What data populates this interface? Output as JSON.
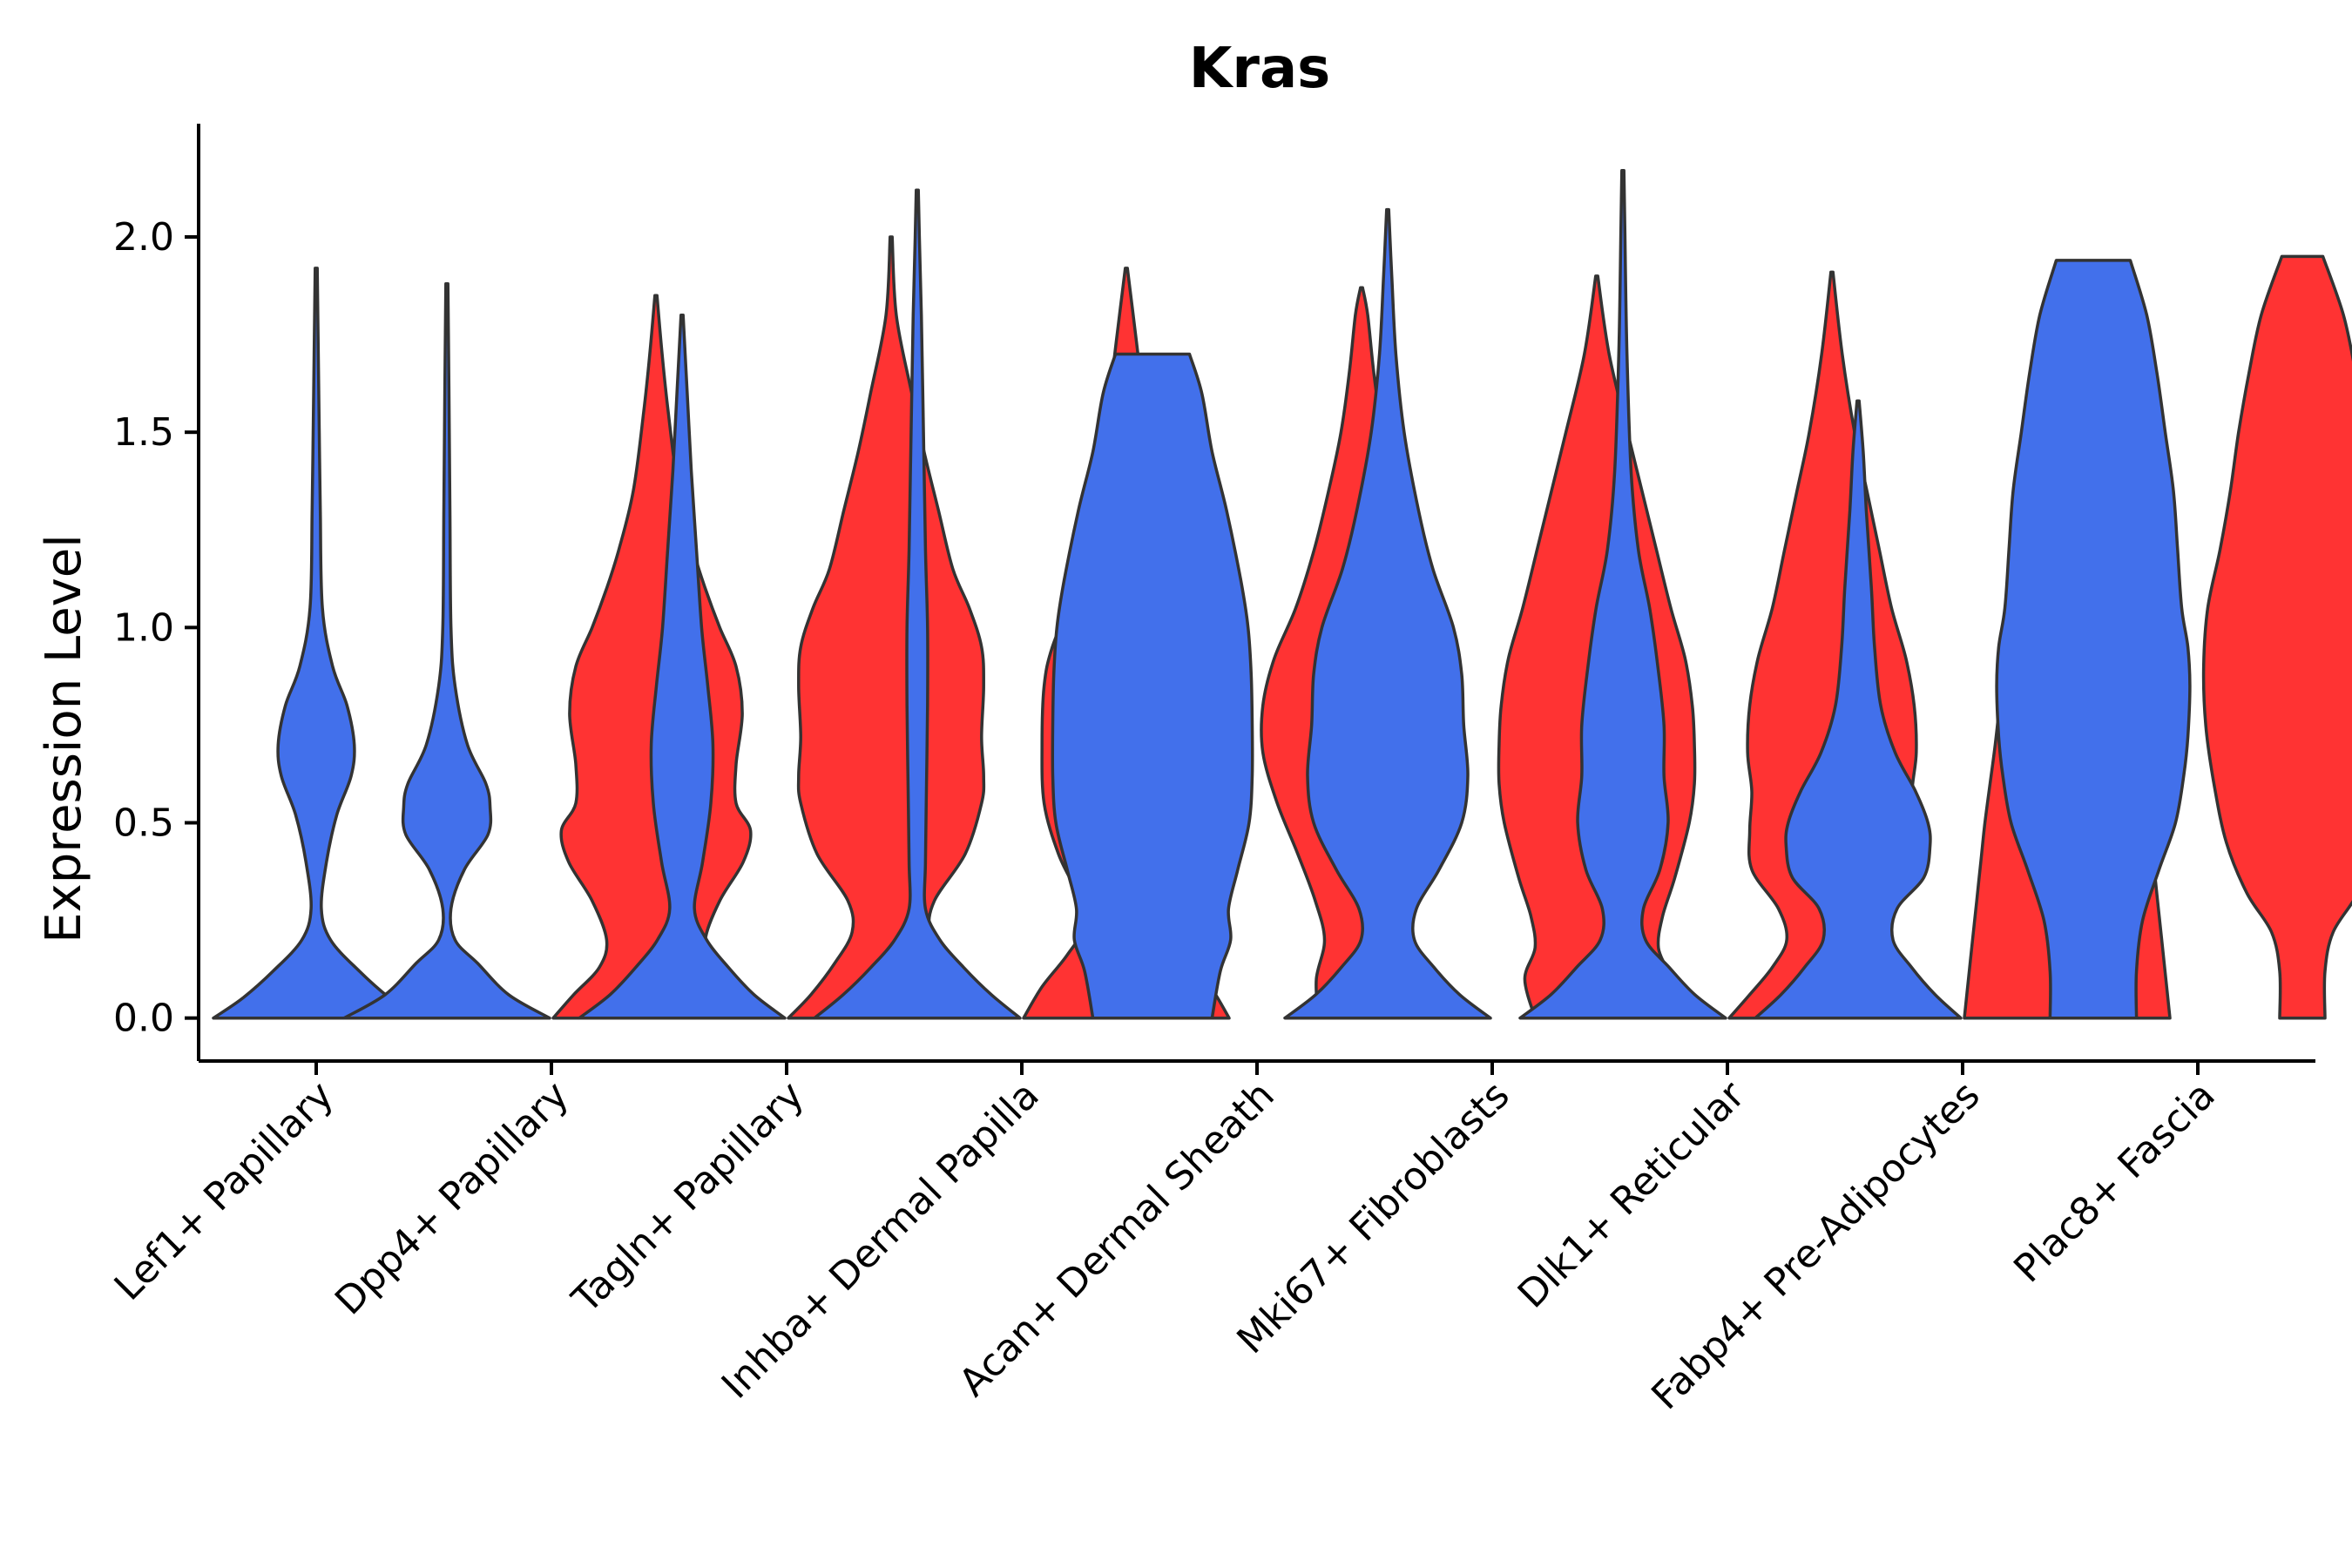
{
  "chart_data": {
    "type": "violin",
    "title": "Kras",
    "ylabel": "Expression Level",
    "xlabel": "",
    "ylim": [
      -0.11,
      2.29
    ],
    "yticks": [
      0.0,
      0.5,
      1.0,
      1.5,
      2.0
    ],
    "ytick_labels": [
      "0.0",
      "0.5",
      "1.0",
      "1.5",
      "2.0"
    ],
    "grid": false,
    "legend": "none",
    "colors": {
      "group_a": "#4270EB",
      "group_b": "#FF3333",
      "outline": "#333333"
    },
    "categories": [
      "Lef1+ Papillary",
      "Dpp4+ Papillary",
      "Tagln+ Papillary",
      "Inhba+ Dermal Papilla",
      "Acan+ Dermal Sheath",
      "Mki67+ Fibroblasts",
      "Dlk1+ Reticular",
      "Fabp4+ Pre-Adipocytes",
      "Plac8+ Fascia"
    ],
    "violins": [
      {
        "category": "Lef1+ Papillary",
        "group": "group_a",
        "max": 1.92,
        "profile": [
          [
            0,
            1.0
          ],
          [
            0.05,
            0.72
          ],
          [
            0.12,
            0.42
          ],
          [
            0.2,
            0.14
          ],
          [
            0.28,
            0.05
          ],
          [
            0.4,
            0.1
          ],
          [
            0.52,
            0.2
          ],
          [
            0.62,
            0.34
          ],
          [
            0.7,
            0.37
          ],
          [
            0.8,
            0.3
          ],
          [
            0.9,
            0.16
          ],
          [
            1.05,
            0.06
          ],
          [
            1.3,
            0.04
          ],
          [
            1.5,
            0.03
          ],
          [
            1.7,
            0.02
          ],
          [
            1.92,
            0.01
          ]
        ]
      },
      {
        "category": "Dpp4+ Papillary",
        "group": "group_a",
        "max": 1.88,
        "profile": [
          [
            0,
            1.0
          ],
          [
            0.06,
            0.6
          ],
          [
            0.14,
            0.3
          ],
          [
            0.2,
            0.08
          ],
          [
            0.28,
            0.04
          ],
          [
            0.38,
            0.17
          ],
          [
            0.47,
            0.4
          ],
          [
            0.54,
            0.42
          ],
          [
            0.6,
            0.38
          ],
          [
            0.7,
            0.2
          ],
          [
            0.85,
            0.08
          ],
          [
            1.0,
            0.04
          ],
          [
            1.3,
            0.03
          ],
          [
            1.6,
            0.02
          ],
          [
            1.88,
            0.01
          ]
        ]
      },
      {
        "category": "Dpp4+ Papillary",
        "group": "group_b",
        "max": 1.85,
        "profile": [
          [
            0,
            1.0
          ],
          [
            0.06,
            0.8
          ],
          [
            0.13,
            0.55
          ],
          [
            0.2,
            0.48
          ],
          [
            0.3,
            0.62
          ],
          [
            0.4,
            0.85
          ],
          [
            0.48,
            0.92
          ],
          [
            0.55,
            0.78
          ],
          [
            0.65,
            0.78
          ],
          [
            0.78,
            0.84
          ],
          [
            0.9,
            0.78
          ],
          [
            1.0,
            0.62
          ],
          [
            1.1,
            0.48
          ],
          [
            1.2,
            0.36
          ],
          [
            1.35,
            0.22
          ],
          [
            1.55,
            0.12
          ],
          [
            1.7,
            0.06
          ],
          [
            1.85,
            0.01
          ]
        ]
      },
      {
        "category": "Tagln+ Papillary",
        "group": "group_a",
        "max": 1.8,
        "profile": [
          [
            0,
            1.0
          ],
          [
            0.06,
            0.7
          ],
          [
            0.13,
            0.45
          ],
          [
            0.2,
            0.24
          ],
          [
            0.28,
            0.12
          ],
          [
            0.4,
            0.2
          ],
          [
            0.55,
            0.28
          ],
          [
            0.7,
            0.3
          ],
          [
            0.85,
            0.25
          ],
          [
            1.0,
            0.19
          ],
          [
            1.2,
            0.14
          ],
          [
            1.4,
            0.09
          ],
          [
            1.6,
            0.05
          ],
          [
            1.8,
            0.01
          ]
        ]
      },
      {
        "category": "Tagln+ Papillary",
        "group": "group_b",
        "max": 2.0,
        "profile": [
          [
            0,
            1.0
          ],
          [
            0.06,
            0.78
          ],
          [
            0.14,
            0.55
          ],
          [
            0.22,
            0.38
          ],
          [
            0.3,
            0.42
          ],
          [
            0.42,
            0.72
          ],
          [
            0.55,
            0.88
          ],
          [
            0.62,
            0.9
          ],
          [
            0.72,
            0.88
          ],
          [
            0.85,
            0.9
          ],
          [
            0.95,
            0.88
          ],
          [
            1.05,
            0.76
          ],
          [
            1.15,
            0.6
          ],
          [
            1.3,
            0.46
          ],
          [
            1.45,
            0.32
          ],
          [
            1.6,
            0.2
          ],
          [
            1.8,
            0.05
          ],
          [
            2.0,
            0.01
          ]
        ]
      },
      {
        "category": "Inhba+ Dermal Papilla",
        "group": "group_a",
        "max": 2.12,
        "profile": [
          [
            0,
            1.0
          ],
          [
            0.06,
            0.72
          ],
          [
            0.13,
            0.45
          ],
          [
            0.2,
            0.22
          ],
          [
            0.28,
            0.08
          ],
          [
            0.4,
            0.08
          ],
          [
            0.6,
            0.09
          ],
          [
            0.8,
            0.1
          ],
          [
            1.0,
            0.1
          ],
          [
            1.2,
            0.08
          ],
          [
            1.5,
            0.06
          ],
          [
            1.8,
            0.04
          ],
          [
            2.0,
            0.02
          ],
          [
            2.12,
            0.01
          ]
        ]
      },
      {
        "category": "Inhba+ Dermal Papilla",
        "group": "group_b",
        "max": 1.92,
        "profile": [
          [
            0,
            1.0
          ],
          [
            0.08,
            0.82
          ],
          [
            0.16,
            0.58
          ],
          [
            0.24,
            0.4
          ],
          [
            0.32,
            0.48
          ],
          [
            0.42,
            0.66
          ],
          [
            0.55,
            0.8
          ],
          [
            0.7,
            0.82
          ],
          [
            0.85,
            0.8
          ],
          [
            0.95,
            0.72
          ],
          [
            1.1,
            0.5
          ],
          [
            1.25,
            0.36
          ],
          [
            1.45,
            0.25
          ],
          [
            1.6,
            0.16
          ],
          [
            1.75,
            0.09
          ],
          [
            1.92,
            0.01
          ]
        ]
      },
      {
        "category": "Acan+ Dermal Sheath",
        "group": "group_a",
        "max": 1.7,
        "profile": [
          [
            0,
            0.58
          ],
          [
            0.12,
            0.66
          ],
          [
            0.2,
            0.76
          ],
          [
            0.28,
            0.74
          ],
          [
            0.38,
            0.83
          ],
          [
            0.5,
            0.94
          ],
          [
            0.62,
            0.97
          ],
          [
            0.75,
            0.97
          ],
          [
            0.88,
            0.96
          ],
          [
            1.0,
            0.93
          ],
          [
            1.12,
            0.86
          ],
          [
            1.3,
            0.72
          ],
          [
            1.45,
            0.58
          ],
          [
            1.6,
            0.48
          ],
          [
            1.7,
            0.36
          ]
        ]
      },
      {
        "category": "Acan+ Dermal Sheath",
        "group": "group_b",
        "max": 1.87,
        "profile": [
          [
            0,
            0.42
          ],
          [
            0.1,
            0.44
          ],
          [
            0.2,
            0.36
          ],
          [
            0.3,
            0.45
          ],
          [
            0.42,
            0.62
          ],
          [
            0.55,
            0.82
          ],
          [
            0.68,
            0.96
          ],
          [
            0.8,
            0.96
          ],
          [
            0.92,
            0.85
          ],
          [
            1.05,
            0.64
          ],
          [
            1.2,
            0.46
          ],
          [
            1.35,
            0.32
          ],
          [
            1.5,
            0.2
          ],
          [
            1.65,
            0.12
          ],
          [
            1.8,
            0.06
          ],
          [
            1.87,
            0.01
          ]
        ]
      },
      {
        "category": "Mki67+ Fibroblasts",
        "group": "group_a",
        "max": 2.07,
        "profile": [
          [
            0,
            1.0
          ],
          [
            0.06,
            0.7
          ],
          [
            0.13,
            0.45
          ],
          [
            0.2,
            0.26
          ],
          [
            0.28,
            0.28
          ],
          [
            0.38,
            0.5
          ],
          [
            0.5,
            0.72
          ],
          [
            0.62,
            0.78
          ],
          [
            0.75,
            0.74
          ],
          [
            0.88,
            0.72
          ],
          [
            1.0,
            0.64
          ],
          [
            1.15,
            0.44
          ],
          [
            1.3,
            0.3
          ],
          [
            1.5,
            0.16
          ],
          [
            1.7,
            0.08
          ],
          [
            1.9,
            0.04
          ],
          [
            2.07,
            0.01
          ]
        ]
      },
      {
        "category": "Mki67+ Fibroblasts",
        "group": "group_b",
        "max": 1.9,
        "profile": [
          [
            0,
            0.6
          ],
          [
            0.1,
            0.7
          ],
          [
            0.18,
            0.6
          ],
          [
            0.26,
            0.64
          ],
          [
            0.36,
            0.76
          ],
          [
            0.5,
            0.9
          ],
          [
            0.6,
            0.95
          ],
          [
            0.7,
            0.95
          ],
          [
            0.8,
            0.93
          ],
          [
            0.92,
            0.86
          ],
          [
            1.05,
            0.72
          ],
          [
            1.2,
            0.58
          ],
          [
            1.35,
            0.44
          ],
          [
            1.5,
            0.3
          ],
          [
            1.7,
            0.12
          ],
          [
            1.9,
            0.01
          ]
        ]
      },
      {
        "category": "Dlk1+ Reticular",
        "group": "group_a",
        "max": 2.17,
        "profile": [
          [
            0,
            1.0
          ],
          [
            0.06,
            0.7
          ],
          [
            0.13,
            0.45
          ],
          [
            0.2,
            0.22
          ],
          [
            0.28,
            0.2
          ],
          [
            0.38,
            0.36
          ],
          [
            0.5,
            0.44
          ],
          [
            0.62,
            0.4
          ],
          [
            0.75,
            0.4
          ],
          [
            0.9,
            0.34
          ],
          [
            1.05,
            0.26
          ],
          [
            1.2,
            0.15
          ],
          [
            1.4,
            0.08
          ],
          [
            1.7,
            0.04
          ],
          [
            2.0,
            0.02
          ],
          [
            2.17,
            0.01
          ]
        ]
      },
      {
        "category": "Dlk1+ Reticular",
        "group": "group_b",
        "max": 1.91,
        "profile": [
          [
            0,
            1.0
          ],
          [
            0.06,
            0.8
          ],
          [
            0.13,
            0.58
          ],
          [
            0.2,
            0.44
          ],
          [
            0.28,
            0.52
          ],
          [
            0.38,
            0.78
          ],
          [
            0.48,
            0.8
          ],
          [
            0.58,
            0.78
          ],
          [
            0.68,
            0.82
          ],
          [
            0.8,
            0.8
          ],
          [
            0.92,
            0.72
          ],
          [
            1.05,
            0.58
          ],
          [
            1.2,
            0.46
          ],
          [
            1.35,
            0.34
          ],
          [
            1.5,
            0.22
          ],
          [
            1.7,
            0.1
          ],
          [
            1.91,
            0.01
          ]
        ]
      },
      {
        "category": "Fabp4+ Pre-Adipocytes",
        "group": "group_a",
        "max": 1.58,
        "profile": [
          [
            0,
            1.0
          ],
          [
            0.06,
            0.75
          ],
          [
            0.13,
            0.52
          ],
          [
            0.2,
            0.34
          ],
          [
            0.28,
            0.38
          ],
          [
            0.36,
            0.64
          ],
          [
            0.44,
            0.7
          ],
          [
            0.5,
            0.68
          ],
          [
            0.58,
            0.56
          ],
          [
            0.68,
            0.36
          ],
          [
            0.8,
            0.22
          ],
          [
            0.95,
            0.16
          ],
          [
            1.1,
            0.13
          ],
          [
            1.3,
            0.08
          ],
          [
            1.45,
            0.05
          ],
          [
            1.58,
            0.01
          ]
        ]
      },
      {
        "category": "Fabp4+ Pre-Adipocytes",
        "group": "group_b",
        "max": 1.07,
        "profile": [
          [
            0,
            1.0
          ],
          [
            0.1,
            0.96
          ],
          [
            0.2,
            0.92
          ],
          [
            0.3,
            0.88
          ],
          [
            0.4,
            0.84
          ],
          [
            0.5,
            0.8
          ],
          [
            0.6,
            0.75
          ],
          [
            0.7,
            0.7
          ],
          [
            0.8,
            0.66
          ],
          [
            0.9,
            0.64
          ],
          [
            1.0,
            0.62
          ],
          [
            1.07,
            0.58
          ]
        ]
      },
      {
        "category": "Plac8+ Fascia",
        "group": "group_a",
        "max": 1.94,
        "profile": [
          [
            0,
            0.42
          ],
          [
            0.12,
            0.42
          ],
          [
            0.25,
            0.48
          ],
          [
            0.38,
            0.64
          ],
          [
            0.5,
            0.8
          ],
          [
            0.62,
            0.88
          ],
          [
            0.72,
            0.92
          ],
          [
            0.85,
            0.94
          ],
          [
            0.95,
            0.92
          ],
          [
            1.05,
            0.86
          ],
          [
            1.2,
            0.82
          ],
          [
            1.35,
            0.78
          ],
          [
            1.5,
            0.7
          ],
          [
            1.65,
            0.62
          ],
          [
            1.8,
            0.52
          ],
          [
            1.94,
            0.36
          ]
        ]
      },
      {
        "category": "Plac8+ Fascia",
        "group": "group_b",
        "max": 1.95,
        "profile": [
          [
            0,
            0.22
          ],
          [
            0.12,
            0.22
          ],
          [
            0.22,
            0.3
          ],
          [
            0.32,
            0.54
          ],
          [
            0.45,
            0.74
          ],
          [
            0.6,
            0.86
          ],
          [
            0.75,
            0.94
          ],
          [
            0.9,
            0.96
          ],
          [
            1.05,
            0.92
          ],
          [
            1.2,
            0.8
          ],
          [
            1.35,
            0.7
          ],
          [
            1.5,
            0.62
          ],
          [
            1.65,
            0.52
          ],
          [
            1.8,
            0.4
          ],
          [
            1.95,
            0.2
          ]
        ]
      }
    ]
  }
}
